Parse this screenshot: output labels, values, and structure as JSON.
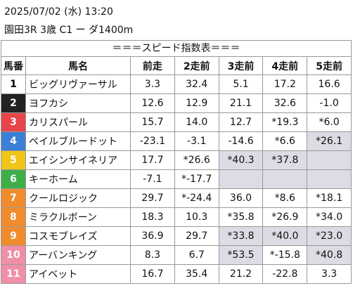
{
  "header": {
    "datetime": "2025/07/02 (水) 13:20",
    "race": "園田3R 3歳 C1 ー ダ1400m"
  },
  "table": {
    "caption": "＝＝＝スピード指数表＝＝＝",
    "columns": [
      "馬番",
      "馬名",
      "前走",
      "2走前",
      "3走前",
      "4走前",
      "5走前"
    ],
    "rows": [
      {
        "number": "1",
        "color": "#ffffff",
        "text_color": "#000000",
        "name": "ビッグリヴァーサル",
        "speeds": [
          "3.3",
          "32.4",
          "5.1",
          "17.2",
          "16.6"
        ]
      },
      {
        "number": "2",
        "color": "#222222",
        "text_color": "#ffffff",
        "name": "ヨフカシ",
        "speeds": [
          "12.6",
          "12.9",
          "21.1",
          "32.6",
          "-1.0"
        ]
      },
      {
        "number": "3",
        "color": "#e8454a",
        "text_color": "#ffffff",
        "name": "カリスパール",
        "speeds": [
          "15.7",
          "14.0",
          "12.7",
          "*19.3",
          "*6.0"
        ]
      },
      {
        "number": "4",
        "color": "#3d7fd6",
        "text_color": "#ffffff",
        "name": "ペイルブルードット",
        "speeds": [
          "-23.1",
          "-3.1",
          "-14.6",
          "*6.6",
          "*26.1"
        ]
      },
      {
        "number": "5",
        "color": "#f0c419",
        "text_color": "#ffffff",
        "name": "エイシンサイネリア",
        "speeds": [
          "17.7",
          "*26.6",
          "*40.3",
          "*37.8",
          null
        ]
      },
      {
        "number": "6",
        "color": "#3fae49",
        "text_color": "#ffffff",
        "name": "キーホーム",
        "speeds": [
          "-7.1",
          "*-17.7",
          null,
          null,
          null
        ]
      },
      {
        "number": "7",
        "color": "#f08c2c",
        "text_color": "#ffffff",
        "name": "クールロジック",
        "speeds": [
          "29.7",
          "*-24.4",
          "36.0",
          "*8.6",
          "*18.1"
        ]
      },
      {
        "number": "8",
        "color": "#f08c2c",
        "text_color": "#ffffff",
        "name": "ミラクルボーン",
        "speeds": [
          "18.3",
          "10.3",
          "*35.8",
          "*26.9",
          "*34.0"
        ]
      },
      {
        "number": "9",
        "color": "#f08c2c",
        "text_color": "#ffffff",
        "name": "コスモブレイズ",
        "speeds": [
          "36.9",
          "29.7",
          "*33.8",
          "*40.0",
          "*23.0"
        ]
      },
      {
        "number": "10",
        "color": "#f08fa8",
        "text_color": "#ffffff",
        "name": "アーバンキング",
        "speeds": [
          "8.3",
          "6.7",
          "*53.5",
          "*-15.8",
          "*40.8"
        ]
      },
      {
        "number": "11",
        "color": "#f08fa8",
        "text_color": "#ffffff",
        "name": "アイベット",
        "speeds": [
          "16.7",
          "35.4",
          "21.2",
          "-22.8",
          "3.3"
        ]
      }
    ]
  }
}
